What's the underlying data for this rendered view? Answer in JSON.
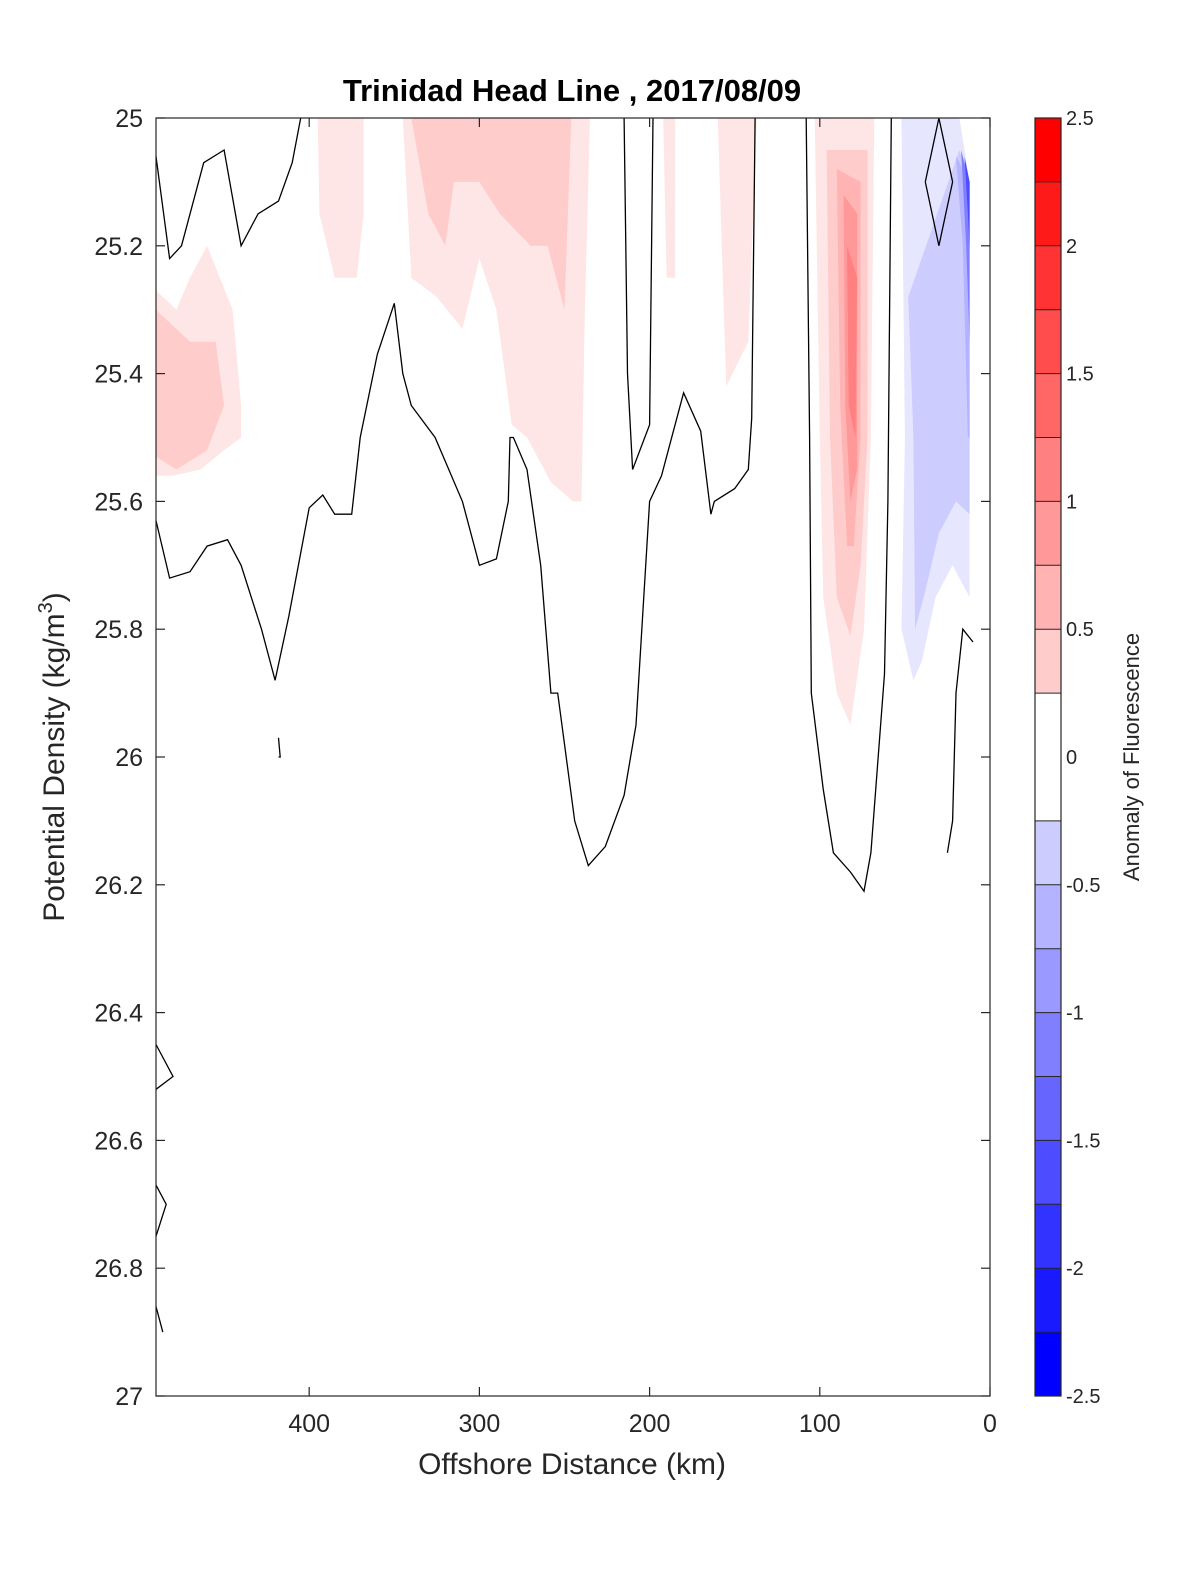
{
  "chart_data": {
    "type": "heatmap",
    "title": "Trinidad Head Line , 2017/08/09",
    "xlabel": "Offshore Distance (km)",
    "ylabel": "Potential Density (kg/m",
    "ylabel_superscript": "3",
    "ylabel_suffix": ")",
    "colorbar_label": "Anomaly of Fluorescence",
    "xlim": [
      490,
      0
    ],
    "x_reversed": true,
    "ylim": [
      25,
      27
    ],
    "y_reversed": true,
    "x_ticks": [
      400,
      300,
      200,
      100,
      0
    ],
    "y_ticks": [
      25,
      25.2,
      25.4,
      25.6,
      25.8,
      26,
      26.2,
      26.4,
      26.6,
      26.8,
      27
    ],
    "colorbar_ticks": [
      2.5,
      2,
      1.5,
      1,
      0.5,
      0,
      -0.5,
      -1,
      -1.5,
      -2,
      -2.5
    ],
    "clim": [
      -2.5,
      2.5
    ],
    "contour_levels": [
      -2.5,
      -2.25,
      -2,
      -1.75,
      -1.5,
      -1.25,
      -1,
      -0.75,
      -0.5,
      -0.25,
      0.25,
      0.5,
      0.75,
      1,
      1.25,
      1.5,
      1.75,
      2,
      2.25,
      2.5
    ],
    "colors": {
      "positive": "#ff0000",
      "negative": "#0000ff",
      "neutral": "#ffffff",
      "contour_line": "#000000"
    },
    "grid": false,
    "zero_contours": [
      [
        [
          490,
          25.06
        ],
        [
          482,
          25.22
        ],
        [
          475,
          25.2
        ],
        [
          462,
          25.07
        ],
        [
          450,
          25.05
        ],
        [
          440,
          25.2
        ],
        [
          430,
          25.15
        ],
        [
          418,
          25.13
        ],
        [
          410,
          25.07
        ],
        [
          405,
          25.0
        ]
      ],
      [
        [
          490,
          25.63
        ],
        [
          482,
          25.72
        ],
        [
          470,
          25.71
        ],
        [
          460,
          25.67
        ],
        [
          448,
          25.66
        ],
        [
          440,
          25.7
        ],
        [
          428,
          25.8
        ],
        [
          420,
          25.88
        ],
        [
          412,
          25.78
        ],
        [
          400,
          25.61
        ],
        [
          392,
          25.59
        ],
        [
          385,
          25.62
        ],
        [
          375,
          25.62
        ],
        [
          370,
          25.5
        ],
        [
          360,
          25.37
        ],
        [
          350,
          25.29
        ],
        [
          345,
          25.4
        ],
        [
          340,
          25.45
        ],
        [
          326,
          25.5
        ],
        [
          310,
          25.6
        ],
        [
          300,
          25.7
        ],
        [
          290,
          25.69
        ],
        [
          283,
          25.6
        ],
        [
          282,
          25.5
        ],
        [
          280,
          25.5
        ],
        [
          272,
          25.55
        ],
        [
          264,
          25.7
        ],
        [
          258,
          25.9
        ],
        [
          254,
          25.9
        ],
        [
          244,
          26.1
        ],
        [
          236,
          26.17
        ],
        [
          226,
          26.14
        ],
        [
          215,
          26.06
        ],
        [
          208,
          25.95
        ],
        [
          200,
          25.6
        ],
        [
          193,
          25.56
        ],
        [
          185,
          25.48
        ],
        [
          180,
          25.43
        ],
        [
          170,
          25.49
        ],
        [
          164,
          25.62
        ],
        [
          162,
          25.6
        ],
        [
          150,
          25.58
        ],
        [
          142,
          25.55
        ],
        [
          140,
          25.47
        ],
        [
          138,
          25.0
        ]
      ],
      [
        [
          215,
          25.0
        ],
        [
          213,
          25.4
        ],
        [
          210,
          25.55
        ],
        [
          200,
          25.48
        ],
        [
          198,
          25.0
        ]
      ],
      [
        [
          108,
          25.0
        ],
        [
          106,
          25.5
        ],
        [
          105,
          25.9
        ],
        [
          98,
          26.05
        ],
        [
          92,
          26.15
        ],
        [
          82,
          26.18
        ],
        [
          74,
          26.21
        ],
        [
          70,
          26.15
        ],
        [
          62,
          25.87
        ],
        [
          60,
          25.6
        ],
        [
          58,
          25.0
        ]
      ],
      [
        [
          38,
          25.1
        ],
        [
          30,
          25.0
        ],
        [
          22,
          25.1
        ],
        [
          30,
          25.2
        ],
        [
          38,
          25.1
        ]
      ],
      [
        [
          25,
          26.15
        ],
        [
          22,
          26.1
        ],
        [
          21,
          26.0
        ],
        [
          20,
          25.9
        ],
        [
          16,
          25.8
        ],
        [
          10,
          25.82
        ]
      ],
      [
        [
          490,
          26.45
        ],
        [
          480,
          26.5
        ],
        [
          490,
          26.52
        ]
      ],
      [
        [
          490,
          26.67
        ],
        [
          484,
          26.7
        ],
        [
          490,
          26.75
        ]
      ],
      [
        [
          490,
          26.86
        ],
        [
          486,
          26.9
        ]
      ],
      [
        [
          418,
          25.97
        ],
        [
          417,
          26.0
        ],
        [
          418,
          26.0
        ]
      ]
    ],
    "anomaly_regions": [
      {
        "level": 0.25,
        "polygon": [
          [
            490,
            25.27
          ],
          [
            478,
            25.3
          ],
          [
            470,
            25.25
          ],
          [
            460,
            25.2
          ],
          [
            445,
            25.3
          ],
          [
            440,
            25.45
          ],
          [
            440,
            25.5
          ],
          [
            450,
            25.52
          ],
          [
            464,
            25.55
          ],
          [
            480,
            25.56
          ],
          [
            490,
            25.56
          ]
        ]
      },
      {
        "level": 0.5,
        "polygon": [
          [
            490,
            25.3
          ],
          [
            470,
            25.35
          ],
          [
            455,
            25.35
          ],
          [
            450,
            25.45
          ],
          [
            460,
            25.52
          ],
          [
            478,
            25.55
          ],
          [
            490,
            25.53
          ]
        ]
      },
      {
        "level": 0.25,
        "polygon": [
          [
            395,
            25.0
          ],
          [
            394,
            25.15
          ],
          [
            385,
            25.25
          ],
          [
            372,
            25.25
          ],
          [
            368,
            25.15
          ],
          [
            368,
            25.0
          ]
        ]
      },
      {
        "level": 0.25,
        "polygon": [
          [
            345,
            25.0
          ],
          [
            340,
            25.25
          ],
          [
            325,
            25.28
          ],
          [
            310,
            25.33
          ],
          [
            300,
            25.22
          ],
          [
            290,
            25.3
          ],
          [
            281,
            25.48
          ],
          [
            272,
            25.5
          ],
          [
            258,
            25.57
          ],
          [
            245,
            25.6
          ],
          [
            240,
            25.6
          ],
          [
            238,
            25.3
          ],
          [
            235,
            25.0
          ]
        ]
      },
      {
        "level": 0.5,
        "polygon": [
          [
            340,
            25.0
          ],
          [
            330,
            25.15
          ],
          [
            320,
            25.2
          ],
          [
            315,
            25.1
          ],
          [
            300,
            25.1
          ],
          [
            288,
            25.15
          ],
          [
            270,
            25.2
          ],
          [
            260,
            25.2
          ],
          [
            250,
            25.3
          ],
          [
            246,
            25.0
          ]
        ]
      },
      {
        "level": 0.25,
        "polygon": [
          [
            185,
            25.0
          ],
          [
            185,
            25.25
          ],
          [
            190,
            25.25
          ],
          [
            192,
            25.0
          ]
        ]
      },
      {
        "level": 0.25,
        "polygon": [
          [
            160,
            25.0
          ],
          [
            155,
            25.42
          ],
          [
            142,
            25.35
          ],
          [
            137,
            25.0
          ]
        ]
      },
      {
        "level": 0.25,
        "polygon": [
          [
            103,
            25.0
          ],
          [
            100,
            25.5
          ],
          [
            98,
            25.75
          ],
          [
            90,
            25.9
          ],
          [
            82,
            25.95
          ],
          [
            74,
            25.8
          ],
          [
            70,
            25.5
          ],
          [
            68,
            25.0
          ]
        ]
      },
      {
        "level": 0.5,
        "polygon": [
          [
            96,
            25.05
          ],
          [
            94,
            25.5
          ],
          [
            90,
            25.75
          ],
          [
            82,
            25.81
          ],
          [
            76,
            25.7
          ],
          [
            72,
            25.5
          ],
          [
            72,
            25.05
          ]
        ]
      },
      {
        "level": 0.75,
        "polygon": [
          [
            90,
            25.08
          ],
          [
            88,
            25.45
          ],
          [
            84,
            25.67
          ],
          [
            80,
            25.67
          ],
          [
            76,
            25.5
          ],
          [
            76,
            25.1
          ]
        ]
      },
      {
        "level": 1.0,
        "polygon": [
          [
            86,
            25.12
          ],
          [
            85,
            25.45
          ],
          [
            82,
            25.6
          ],
          [
            78,
            25.55
          ],
          [
            78,
            25.15
          ]
        ]
      },
      {
        "level": 1.25,
        "polygon": [
          [
            84,
            25.2
          ],
          [
            83,
            25.45
          ],
          [
            79,
            25.5
          ],
          [
            78,
            25.25
          ]
        ]
      },
      {
        "level": -0.25,
        "polygon": [
          [
            52,
            25.0
          ],
          [
            50,
            25.5
          ],
          [
            52,
            25.8
          ],
          [
            45,
            25.88
          ],
          [
            40,
            25.85
          ],
          [
            32,
            25.75
          ],
          [
            22,
            25.7
          ],
          [
            12,
            25.75
          ],
          [
            12,
            25.1
          ],
          [
            18,
            25.0
          ]
        ]
      },
      {
        "level": -0.5,
        "polygon": [
          [
            48,
            25.28
          ],
          [
            45,
            25.5
          ],
          [
            44,
            25.8
          ],
          [
            38,
            25.74
          ],
          [
            30,
            25.65
          ],
          [
            20,
            25.6
          ],
          [
            12,
            25.62
          ],
          [
            12,
            25.1
          ],
          [
            18,
            25.05
          ]
        ]
      },
      {
        "level": -0.75,
        "polygon": [
          [
            20,
            25.06
          ],
          [
            16,
            25.2
          ],
          [
            13,
            25.5
          ],
          [
            12,
            25.5
          ],
          [
            12,
            25.1
          ]
        ]
      },
      {
        "level": -1.25,
        "polygon": [
          [
            17,
            25.05
          ],
          [
            14,
            25.2
          ],
          [
            12,
            25.35
          ],
          [
            12,
            25.1
          ]
        ]
      },
      {
        "level": -1.75,
        "polygon": [
          [
            15,
            25.06
          ],
          [
            13,
            25.15
          ],
          [
            12,
            25.2
          ],
          [
            12,
            25.1
          ]
        ]
      }
    ]
  }
}
